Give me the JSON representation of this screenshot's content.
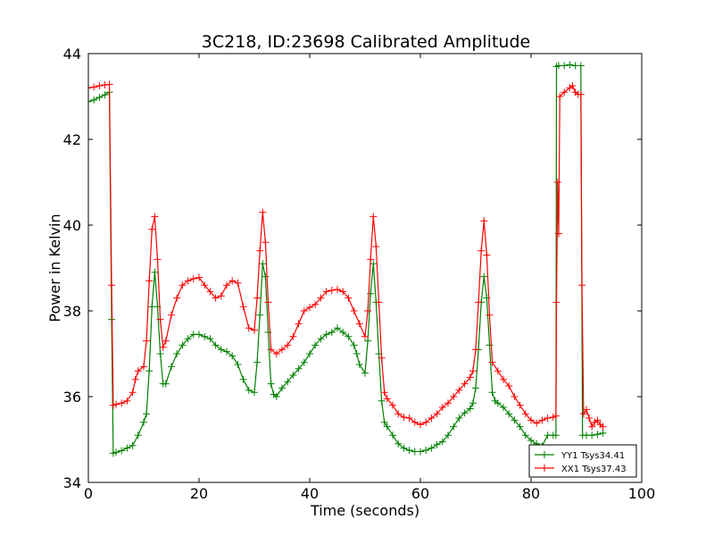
{
  "chart_data": {
    "type": "line",
    "title": "3C218, ID:23698 Calibrated Amplitude",
    "xlabel": "Time (seconds)",
    "ylabel": "Power in Kelvin",
    "xlim": [
      0,
      100
    ],
    "ylim": [
      34,
      44
    ],
    "xticks": [
      "0",
      "20",
      "40",
      "60",
      "80",
      "100"
    ],
    "yticks": [
      "34",
      "36",
      "38",
      "40",
      "42",
      "44"
    ],
    "grid": false,
    "legend_position": "lower-right",
    "marker": "plus",
    "series": [
      {
        "name": "YY1 Tsys34.41",
        "color": "#008000",
        "points": [
          [
            0,
            42.88
          ],
          [
            1,
            42.92
          ],
          [
            2,
            42.98
          ],
          [
            3,
            43.04
          ],
          [
            3.8,
            43.1
          ],
          [
            4.2,
            37.8
          ],
          [
            4.5,
            34.68
          ],
          [
            5,
            34.7
          ],
          [
            6,
            34.74
          ],
          [
            7,
            34.8
          ],
          [
            8,
            34.86
          ],
          [
            9,
            35.1
          ],
          [
            10,
            35.4
          ],
          [
            10.5,
            35.6
          ],
          [
            11,
            36.6
          ],
          [
            11.5,
            38.1
          ],
          [
            12,
            38.9
          ],
          [
            12.5,
            38.1
          ],
          [
            13,
            37.0
          ],
          [
            13.5,
            36.3
          ],
          [
            14,
            36.3
          ],
          [
            15,
            36.7
          ],
          [
            16,
            37.0
          ],
          [
            17,
            37.2
          ],
          [
            18,
            37.35
          ],
          [
            19,
            37.45
          ],
          [
            20,
            37.45
          ],
          [
            21,
            37.4
          ],
          [
            22,
            37.35
          ],
          [
            23,
            37.2
          ],
          [
            24,
            37.1
          ],
          [
            25,
            37.05
          ],
          [
            26,
            36.95
          ],
          [
            27,
            36.75
          ],
          [
            28,
            36.4
          ],
          [
            29,
            36.15
          ],
          [
            30,
            36.1
          ],
          [
            30.5,
            36.8
          ],
          [
            31,
            37.9
          ],
          [
            31.5,
            39.1
          ],
          [
            32,
            38.8
          ],
          [
            32.5,
            37.5
          ],
          [
            33,
            36.3
          ],
          [
            33.5,
            36.05
          ],
          [
            34,
            36.0
          ],
          [
            35,
            36.2
          ],
          [
            36,
            36.35
          ],
          [
            37,
            36.5
          ],
          [
            38,
            36.65
          ],
          [
            39,
            36.8
          ],
          [
            40,
            37.0
          ],
          [
            41,
            37.2
          ],
          [
            42,
            37.35
          ],
          [
            43,
            37.45
          ],
          [
            44,
            37.5
          ],
          [
            45,
            37.6
          ],
          [
            46,
            37.5
          ],
          [
            47,
            37.4
          ],
          [
            48,
            37.2
          ],
          [
            48.5,
            37.0
          ],
          [
            49,
            36.75
          ],
          [
            50,
            36.55
          ],
          [
            50.5,
            37.3
          ],
          [
            51,
            38.4
          ],
          [
            51.5,
            39.1
          ],
          [
            52,
            38.2
          ],
          [
            52.5,
            37.0
          ],
          [
            53,
            35.9
          ],
          [
            53.5,
            35.4
          ],
          [
            54,
            35.3
          ],
          [
            55,
            35.1
          ],
          [
            56,
            34.9
          ],
          [
            57,
            34.8
          ],
          [
            58,
            34.75
          ],
          [
            59,
            34.72
          ],
          [
            60,
            34.72
          ],
          [
            61,
            34.75
          ],
          [
            62,
            34.8
          ],
          [
            63,
            34.88
          ],
          [
            64,
            34.95
          ],
          [
            65,
            35.1
          ],
          [
            66,
            35.3
          ],
          [
            67,
            35.5
          ],
          [
            68,
            35.62
          ],
          [
            69,
            35.72
          ],
          [
            69.5,
            35.85
          ],
          [
            70,
            36.2
          ],
          [
            70.5,
            37.1
          ],
          [
            71,
            38.2
          ],
          [
            71.5,
            38.8
          ],
          [
            72,
            38.3
          ],
          [
            72.5,
            37.2
          ],
          [
            73,
            36.1
          ],
          [
            73.5,
            35.9
          ],
          [
            74,
            35.85
          ],
          [
            75,
            35.75
          ],
          [
            76,
            35.6
          ],
          [
            77,
            35.45
          ],
          [
            78,
            35.3
          ],
          [
            79,
            35.1
          ],
          [
            80,
            34.98
          ],
          [
            81,
            34.9
          ],
          [
            82,
            34.85
          ],
          [
            83,
            35.1
          ],
          [
            84,
            35.1
          ],
          [
            84.5,
            35.1
          ],
          [
            84.6,
            43.7
          ],
          [
            85,
            43.72
          ],
          [
            86,
            43.72
          ],
          [
            87,
            43.74
          ],
          [
            88,
            43.72
          ],
          [
            89,
            43.72
          ],
          [
            89.3,
            35.1
          ],
          [
            90,
            35.1
          ],
          [
            91,
            35.1
          ],
          [
            92,
            35.12
          ],
          [
            93,
            35.15
          ]
        ]
      },
      {
        "name": "XX1 Tsys37.43",
        "color": "#ff0000",
        "points": [
          [
            0,
            43.2
          ],
          [
            1,
            43.22
          ],
          [
            2,
            43.25
          ],
          [
            3,
            43.27
          ],
          [
            3.8,
            43.28
          ],
          [
            4.2,
            38.6
          ],
          [
            4.5,
            35.8
          ],
          [
            5,
            35.82
          ],
          [
            6,
            35.85
          ],
          [
            7,
            35.9
          ],
          [
            8,
            36.1
          ],
          [
            8.5,
            36.4
          ],
          [
            9,
            36.6
          ],
          [
            10,
            36.7
          ],
          [
            10.5,
            37.3
          ],
          [
            11,
            38.7
          ],
          [
            11.5,
            39.9
          ],
          [
            12,
            40.2
          ],
          [
            12.5,
            39.2
          ],
          [
            13,
            37.8
          ],
          [
            13.5,
            37.15
          ],
          [
            14,
            37.3
          ],
          [
            15,
            37.9
          ],
          [
            16,
            38.3
          ],
          [
            17,
            38.6
          ],
          [
            18,
            38.7
          ],
          [
            19,
            38.75
          ],
          [
            20,
            38.78
          ],
          [
            21,
            38.6
          ],
          [
            22,
            38.45
          ],
          [
            23,
            38.3
          ],
          [
            24,
            38.35
          ],
          [
            25,
            38.6
          ],
          [
            26,
            38.7
          ],
          [
            27,
            38.65
          ],
          [
            28,
            38.1
          ],
          [
            29,
            37.6
          ],
          [
            30,
            37.55
          ],
          [
            30.5,
            38.3
          ],
          [
            31,
            39.4
          ],
          [
            31.5,
            40.3
          ],
          [
            32,
            39.6
          ],
          [
            32.5,
            38.2
          ],
          [
            33,
            37.1
          ],
          [
            34,
            37.0
          ],
          [
            35,
            37.1
          ],
          [
            36,
            37.2
          ],
          [
            37,
            37.4
          ],
          [
            38,
            37.7
          ],
          [
            39,
            38.0
          ],
          [
            40,
            38.08
          ],
          [
            41,
            38.15
          ],
          [
            42,
            38.3
          ],
          [
            43,
            38.45
          ],
          [
            44,
            38.48
          ],
          [
            45,
            38.5
          ],
          [
            46,
            38.45
          ],
          [
            47,
            38.3
          ],
          [
            48,
            38.0
          ],
          [
            49,
            37.7
          ],
          [
            50,
            37.4
          ],
          [
            50.5,
            38.0
          ],
          [
            51,
            39.2
          ],
          [
            51.5,
            40.2
          ],
          [
            52,
            39.5
          ],
          [
            52.5,
            38.2
          ],
          [
            53,
            36.9
          ],
          [
            53.5,
            36.1
          ],
          [
            54,
            35.95
          ],
          [
            55,
            35.8
          ],
          [
            56,
            35.6
          ],
          [
            57,
            35.52
          ],
          [
            58,
            35.5
          ],
          [
            59,
            35.4
          ],
          [
            60,
            35.35
          ],
          [
            61,
            35.4
          ],
          [
            62,
            35.5
          ],
          [
            63,
            35.6
          ],
          [
            64,
            35.75
          ],
          [
            65,
            35.85
          ],
          [
            66,
            36.0
          ],
          [
            67,
            36.15
          ],
          [
            68,
            36.3
          ],
          [
            69,
            36.45
          ],
          [
            69.5,
            36.6
          ],
          [
            70,
            37.1
          ],
          [
            70.5,
            38.2
          ],
          [
            71,
            39.4
          ],
          [
            71.5,
            40.1
          ],
          [
            72,
            39.3
          ],
          [
            72.5,
            37.9
          ],
          [
            73,
            36.8
          ],
          [
            74,
            36.6
          ],
          [
            75,
            36.4
          ],
          [
            76,
            36.25
          ],
          [
            77,
            36.0
          ],
          [
            78,
            35.8
          ],
          [
            79,
            35.6
          ],
          [
            80,
            35.45
          ],
          [
            81,
            35.38
          ],
          [
            82,
            35.45
          ],
          [
            83,
            35.5
          ],
          [
            84,
            35.52
          ],
          [
            84.5,
            35.55
          ],
          [
            84.6,
            38.2
          ],
          [
            84.8,
            41.0
          ],
          [
            85,
            39.8
          ],
          [
            85.2,
            43.0
          ],
          [
            86,
            43.1
          ],
          [
            87,
            43.2
          ],
          [
            87.5,
            43.25
          ],
          [
            88,
            43.1
          ],
          [
            88.5,
            43.05
          ],
          [
            89,
            43.05
          ],
          [
            89.2,
            38.6
          ],
          [
            89.5,
            35.6
          ],
          [
            90,
            35.7
          ],
          [
            90.5,
            35.5
          ],
          [
            91,
            35.3
          ],
          [
            91.5,
            35.4
          ],
          [
            92,
            35.45
          ],
          [
            92.5,
            35.35
          ],
          [
            93,
            35.3
          ]
        ]
      }
    ]
  }
}
